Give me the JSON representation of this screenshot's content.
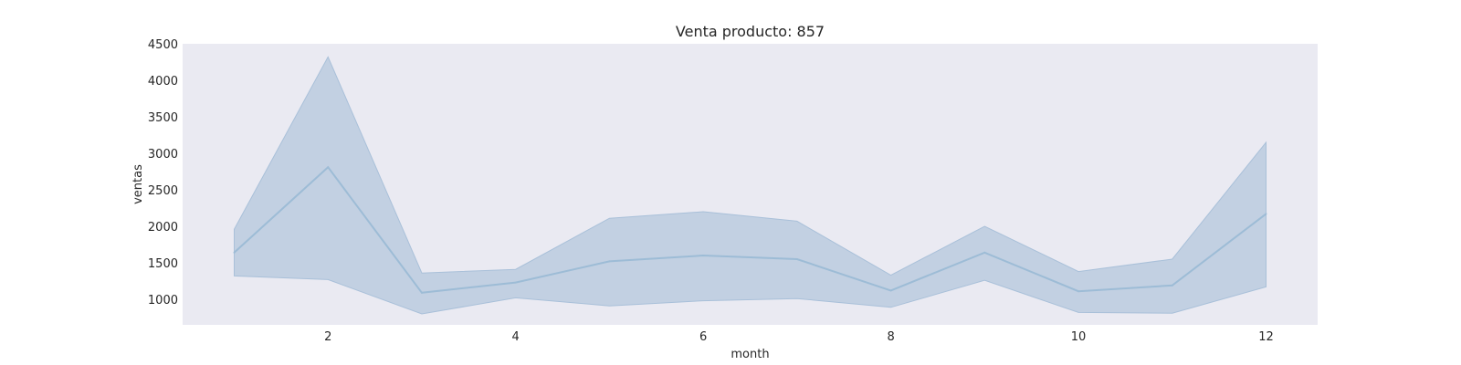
{
  "chart_data": {
    "type": "line",
    "title": "Venta producto: 857",
    "xlabel": "month",
    "ylabel": "ventas",
    "x": [
      1,
      2,
      3,
      4,
      5,
      6,
      7,
      8,
      9,
      10,
      11,
      12
    ],
    "series": [
      {
        "values": [
          1640,
          2810,
          1090,
          1230,
          1520,
          1600,
          1550,
          1120,
          1640,
          1110,
          1190,
          2170
        ],
        "ci_lower": [
          1320,
          1270,
          800,
          1020,
          910,
          980,
          1010,
          890,
          1260,
          820,
          810,
          1170
        ],
        "ci_upper": [
          1960,
          4320,
          1360,
          1410,
          2110,
          2200,
          2070,
          1330,
          2000,
          1380,
          1550,
          3150
        ],
        "color": "#4c72b0"
      }
    ],
    "xticks": [
      2,
      4,
      6,
      8,
      10,
      12
    ],
    "yticks": [
      1000,
      1500,
      2000,
      2500,
      3000,
      3500,
      4000,
      4500
    ],
    "xlim": [
      0.45,
      12.55
    ],
    "ylim": [
      650,
      4500
    ],
    "grid": false,
    "background": "#eaeaf2"
  }
}
